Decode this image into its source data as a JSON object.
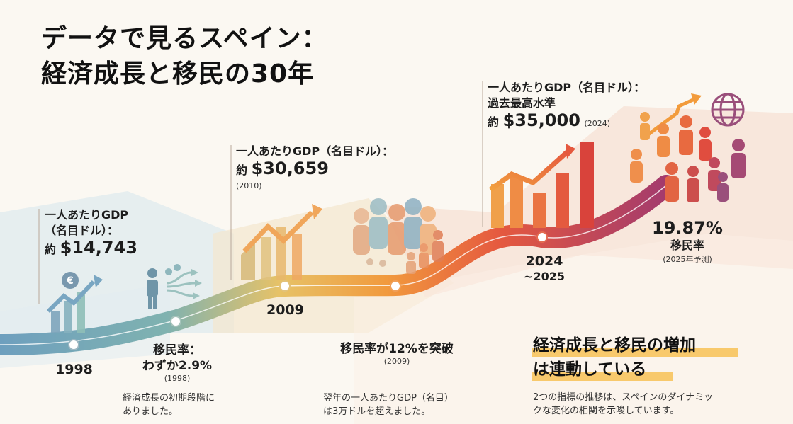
{
  "title": {
    "line1": "データで見るスペイン：",
    "line2": "経済成長と移民の30年"
  },
  "milestones": [
    {
      "year": "1998",
      "gdp_label1": "一人あたりGDP",
      "gdp_label2": "（名目ドル）：",
      "gdp_prefix": "約",
      "gdp_value": "$14,743",
      "migrant_label": "移民率：",
      "migrant_value": "わずか2.9%",
      "migrant_year": "(1998)",
      "desc1": "経済成長の初期段階に",
      "desc2": "ありました。"
    },
    {
      "year": "2009",
      "gdp_label": "一人あたりGDP（名目ドル）：",
      "gdp_prefix": "約",
      "gdp_value": "$30,659",
      "gdp_year": "(2010)",
      "migrant_label": "移民率が12%を突破",
      "migrant_year": "(2009)",
      "desc1": "翌年の一人あたりGDP（名目）",
      "desc2": "は3万ドルを超えました。"
    },
    {
      "year": "2024",
      "year2": "~2025",
      "gdp_label": "一人あたりGDP（名目ドル）：",
      "gdp_sub": "過去最高水準",
      "gdp_prefix": "約",
      "gdp_value": "$35,000",
      "gdp_year": "(2024)",
      "migrant_value": "19.87%",
      "migrant_label": "移民率",
      "migrant_year": "(2025年予測)"
    }
  ],
  "conclusion": {
    "line1": "経済成長と移民の増加",
    "line2": "は連動している",
    "desc1": "2つの指標の推移は、スペインのダイナミッ",
    "desc2": "クな変化の相関を示唆しています。"
  },
  "icons": {
    "euro": "€",
    "colors": {
      "blue": "#5b8fb0",
      "teal": "#6aa6a0",
      "orange": "#ef8a3a",
      "red": "#e2563e",
      "purple": "#9a4f7b",
      "yellow": "#f8c96c"
    }
  }
}
